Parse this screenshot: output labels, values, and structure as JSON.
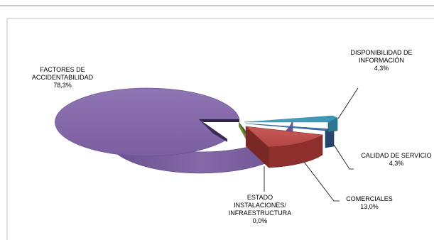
{
  "chart_data": {
    "type": "pie",
    "style": "3d-exploded",
    "legend": "none",
    "slices": [
      {
        "name": "FACTORES DE ACCIDENTABILIDAD",
        "value": 78.3,
        "label_lines": [
          "FACTORES DE",
          "ACCIDENTABILIDAD"
        ],
        "pct": "78,3%",
        "color": "#8064a2"
      },
      {
        "name": "DISPONIBILIDAD DE INFORMACIÓN",
        "value": 4.3,
        "label_lines": [
          "DISPONIBILIDAD DE",
          "INFORMACIÓN"
        ],
        "pct": "4,3%",
        "color": "#4bacc6"
      },
      {
        "name": "CALIDAD DE SERVICIO",
        "value": 4.3,
        "label_lines": [
          "CALIDAD DE SERVICIO"
        ],
        "pct": "4,3%",
        "color": "#4f81bd"
      },
      {
        "name": "COMERCIALES",
        "value": 13.0,
        "label_lines": [
          "COMERCIALES"
        ],
        "pct": "13,0%",
        "color": "#c0504d"
      },
      {
        "name": "ESTADO INSTALACIONES/ INFRAESTRUCTURA",
        "value": 0.0,
        "label_lines": [
          "ESTADO",
          "INSTALACIONES/",
          "INFRAESTRUCTURA"
        ],
        "pct": "0,0%",
        "color": "#9bbb59"
      }
    ]
  }
}
